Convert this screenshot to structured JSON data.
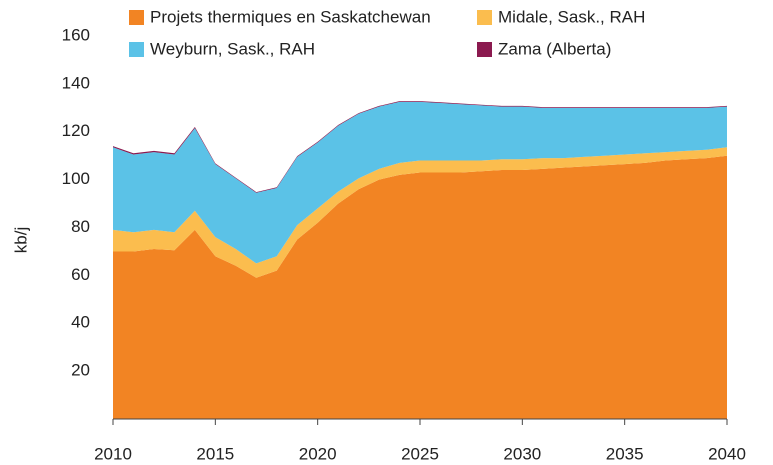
{
  "chart_data": {
    "type": "stacked_area",
    "y_label": "kb/j",
    "x": [
      2010,
      2011,
      2012,
      2013,
      2014,
      2015,
      2016,
      2017,
      2018,
      2019,
      2020,
      2021,
      2022,
      2023,
      2024,
      2025,
      2026,
      2027,
      2028,
      2029,
      2030,
      2031,
      2032,
      2033,
      2034,
      2035,
      2036,
      2037,
      2038,
      2039,
      2040
    ],
    "xlim": [
      2010,
      2040
    ],
    "xticks": [
      2010,
      2015,
      2020,
      2025,
      2030,
      2035,
      2040
    ],
    "ylim": [
      0,
      160
    ],
    "yticks": [
      20,
      40,
      60,
      80,
      100,
      120,
      140,
      160
    ],
    "series": [
      {
        "name": "Projets thermiques en Saskatchewan",
        "color": "#f28423",
        "values": [
          70,
          70,
          71,
          70.5,
          79,
          68,
          64,
          59,
          62,
          75,
          82,
          90,
          96,
          100,
          102,
          103,
          103,
          103,
          103.5,
          104,
          104,
          104.5,
          105,
          105.5,
          106,
          106.5,
          107,
          108,
          108.5,
          109,
          110
        ]
      },
      {
        "name": "Midale, Sask., RAH",
        "color": "#fbbd4e",
        "values": [
          9,
          8,
          8,
          7.5,
          8,
          8,
          7,
          6,
          6,
          6,
          6,
          5,
          4.5,
          4.5,
          5,
          5,
          5,
          5,
          4.5,
          4.5,
          4.5,
          4.5,
          4,
          4,
          4,
          4,
          4,
          3.5,
          3.5,
          3.5,
          3.5
        ]
      },
      {
        "name": "Weyburn, Sask., RAH",
        "color": "#5bc2e7",
        "values": [
          34.5,
          32.5,
          32.5,
          32.5,
          34.5,
          30.5,
          29.5,
          29.5,
          28.5,
          28.5,
          27.5,
          27.5,
          27,
          26,
          25.5,
          24.5,
          24,
          23.5,
          23,
          22,
          22,
          21,
          21,
          20.5,
          20,
          19.5,
          19,
          18.5,
          18,
          17.5,
          17
        ]
      },
      {
        "name": "Zama (Alberta)",
        "color": "#8b1a4f",
        "values": [
          0.5,
          0.5,
          0.5,
          0.5,
          0.5,
          0.3,
          0.3,
          0.3,
          0.3,
          0.3,
          0.3,
          0.3,
          0.3,
          0.3,
          0.3,
          0.3,
          0.3,
          0.3,
          0.3,
          0.3,
          0.3,
          0.3,
          0.3,
          0.3,
          0.3,
          0.3,
          0.3,
          0.3,
          0.3,
          0.3,
          0.3
        ]
      }
    ]
  }
}
